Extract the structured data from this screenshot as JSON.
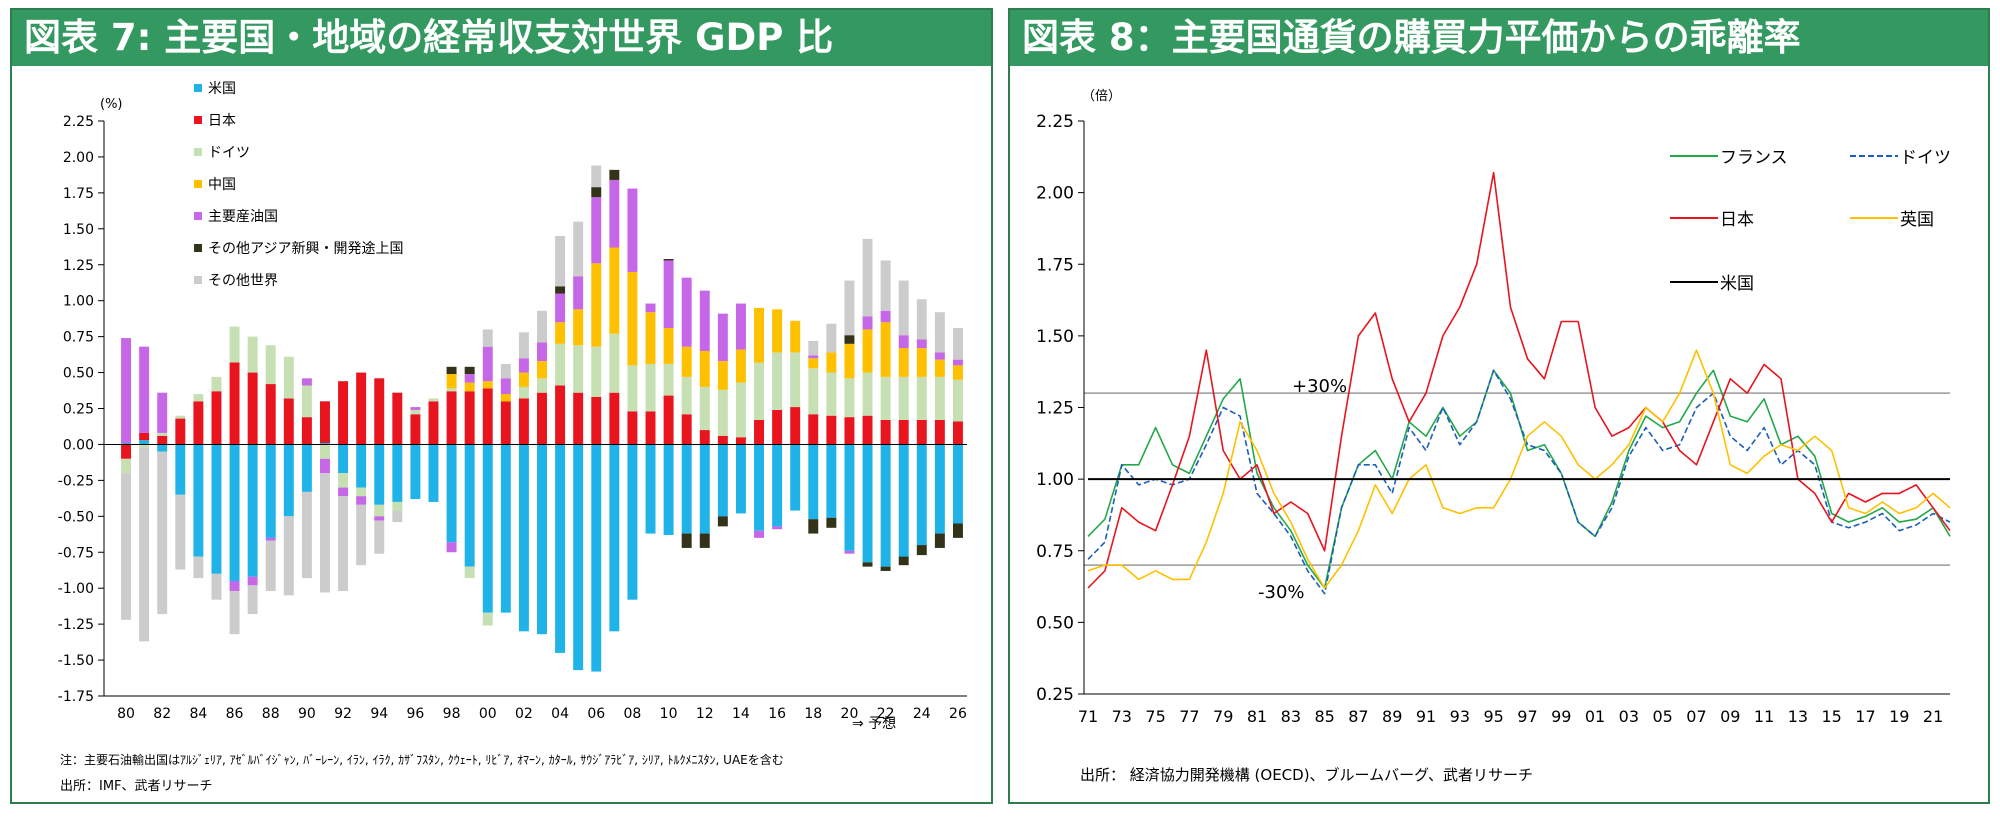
{
  "chart7": {
    "title": "図表 7: 主要国・地域の経常収支対世界 GDP 比",
    "unit": "(%)",
    "forecast_label": "⇒ 予想",
    "note": "注：主要石油輸出国はｱﾙｼﾞｪﾘｱ, ｱｾﾞﾙﾊﾞｲｼﾞｬﾝ, ﾊﾞｰﾚｰﾝ, ｲﾗﾝ, ｲﾗｸ, ｶｻﾞﾌｽﾀﾝ, ｸｳｪｰﾄ, ﾘﾋﾞｱ, ｵﾏｰﾝ, ｶﾀｰﾙ, ｻｳｼﾞｱﾗﾋﾞｱ, ｼﾘｱ, ﾄﾙｸﾒﾆｽﾀﾝ, UAEを含む",
    "source": "出所：IMF、武者リサーチ"
  },
  "chart8": {
    "title": "図表 8：主要国通貨の購買力平価からの乖離率",
    "unit": "（倍）",
    "plus_label": "+30%",
    "minus_label": "-30%",
    "source": "出所： 経済協力開発機構 (OECD)、ブルームバーグ、武者リサーチ"
  },
  "chart_data": [
    {
      "type": "bar",
      "stacked": true,
      "title": "図表 7: 主要国・地域の経常収支対世界 GDP 比",
      "ylabel": "(%)",
      "ylim": [
        -1.75,
        2.25
      ],
      "yticks": [
        "2.25",
        "2.00",
        "1.75",
        "1.50",
        "1.25",
        "1.00",
        "0.75",
        "0.50",
        "0.25",
        "0.00",
        "-0.25",
        "-0.50",
        "-0.75",
        "-1.00",
        "-1.25",
        "-1.50",
        "-1.75"
      ],
      "xtick_labels": [
        "80",
        "82",
        "84",
        "86",
        "88",
        "90",
        "92",
        "94",
        "96",
        "98",
        "00",
        "02",
        "04",
        "06",
        "08",
        "10",
        "12",
        "14",
        "16",
        "18",
        "20",
        "22",
        "24",
        "26"
      ],
      "legend_position": "top-left",
      "categories": [
        "1980",
        "1981",
        "1982",
        "1983",
        "1984",
        "1985",
        "1986",
        "1987",
        "1988",
        "1989",
        "1990",
        "1991",
        "1992",
        "1993",
        "1994",
        "1995",
        "1996",
        "1997",
        "1998",
        "1999",
        "2000",
        "2001",
        "2002",
        "2003",
        "2004",
        "2005",
        "2006",
        "2007",
        "2008",
        "2009",
        "2010",
        "2011",
        "2012",
        "2013",
        "2014",
        "2015",
        "2016",
        "2017",
        "2018",
        "2019",
        "2020",
        "2021",
        "2022",
        "2023",
        "2024",
        "2025",
        "2026"
      ],
      "series": [
        {
          "name": "米国",
          "color": "#1fb3e8",
          "values": [
            0.01,
            0.03,
            -0.05,
            -0.35,
            -0.78,
            -0.9,
            -0.95,
            -0.92,
            -0.65,
            -0.5,
            -0.33,
            0.01,
            -0.2,
            -0.3,
            -0.42,
            -0.4,
            -0.38,
            -0.4,
            -0.68,
            -0.85,
            -1.17,
            -1.17,
            -1.3,
            -1.32,
            -1.45,
            -1.57,
            -1.58,
            -1.3,
            -1.08,
            -0.62,
            -0.63,
            -0.62,
            -0.62,
            -0.5,
            -0.48,
            -0.6,
            -0.57,
            -0.46,
            -0.52,
            -0.51,
            -0.74,
            -0.82,
            -0.85,
            -0.78,
            -0.7,
            -0.62,
            -0.55
          ]
        },
        {
          "name": "日本",
          "color": "#e8141e",
          "values": [
            -0.1,
            0.05,
            0.06,
            0.18,
            0.3,
            0.37,
            0.57,
            0.5,
            0.42,
            0.32,
            0.19,
            0.29,
            0.44,
            0.5,
            0.46,
            0.36,
            0.21,
            0.3,
            0.37,
            0.37,
            0.39,
            0.3,
            0.32,
            0.36,
            0.41,
            0.36,
            0.33,
            0.36,
            0.23,
            0.23,
            0.34,
            0.21,
            0.1,
            0.06,
            0.05,
            0.17,
            0.24,
            0.26,
            0.21,
            0.2,
            0.19,
            0.2,
            0.17,
            0.17,
            0.17,
            0.17,
            0.16
          ]
        },
        {
          "name": "ドイツ",
          "color": "#c6e0b4",
          "values": [
            -0.1,
            -0.02,
            0.02,
            0.02,
            0.05,
            0.1,
            0.25,
            0.25,
            0.27,
            0.29,
            0.22,
            -0.1,
            -0.1,
            -0.06,
            -0.08,
            -0.06,
            0.03,
            0.02,
            0.02,
            -0.08,
            -0.09,
            0.0,
            0.08,
            0.1,
            0.29,
            0.33,
            0.35,
            0.41,
            0.32,
            0.33,
            0.22,
            0.26,
            0.3,
            0.32,
            0.38,
            0.4,
            0.4,
            0.38,
            0.32,
            0.3,
            0.27,
            0.3,
            0.3,
            0.3,
            0.3,
            0.3,
            0.29
          ]
        },
        {
          "name": "中国",
          "color": "#ffc000",
          "values": [
            0,
            0,
            0,
            0,
            0,
            0,
            0,
            0,
            0,
            0,
            0,
            0,
            0,
            0,
            0,
            0,
            0,
            0,
            0.1,
            0.06,
            0.05,
            0.05,
            0.1,
            0.12,
            0.15,
            0.25,
            0.58,
            0.6,
            0.65,
            0.36,
            0.25,
            0.21,
            0.25,
            0.2,
            0.23,
            0.38,
            0.3,
            0.22,
            0.07,
            0.14,
            0.24,
            0.3,
            0.38,
            0.2,
            0.2,
            0.12,
            0.1
          ]
        },
        {
          "name": "主要産油国",
          "color": "#c667e8",
          "values": [
            0.73,
            0.6,
            0.28,
            0.0,
            0.0,
            0.0,
            -0.07,
            -0.06,
            -0.02,
            0.0,
            0.05,
            -0.1,
            -0.06,
            -0.06,
            -0.03,
            0.0,
            0.02,
            0.0,
            -0.07,
            0.06,
            0.24,
            0.11,
            0.1,
            0.13,
            0.2,
            0.23,
            0.46,
            0.47,
            0.58,
            0.06,
            0.47,
            0.48,
            0.42,
            0.33,
            0.32,
            -0.05,
            -0.02,
            0.0,
            0.02,
            0.0,
            -0.02,
            0.09,
            0.08,
            0.09,
            0.06,
            0.05,
            0.04
          ]
        },
        {
          "name": "その他アジア新興・開発途上国",
          "color": "#333319",
          "values": [
            0.0,
            0.0,
            0.0,
            0.0,
            0.0,
            0.0,
            0.0,
            0.0,
            0.0,
            0.0,
            0.0,
            0.0,
            0.0,
            0.0,
            0.0,
            0.0,
            0.0,
            0.0,
            0.05,
            0.05,
            0.0,
            0.0,
            0.0,
            0.0,
            0.05,
            0.0,
            0.07,
            0.07,
            0.0,
            0.0,
            0.01,
            -0.1,
            -0.1,
            -0.07,
            0.0,
            0.0,
            0.0,
            0.0,
            -0.1,
            -0.07,
            0.06,
            -0.03,
            -0.03,
            -0.06,
            -0.07,
            -0.1,
            -0.1
          ]
        },
        {
          "name": "その他世界",
          "color": "#cccccc",
          "values": [
            -1.02,
            -1.35,
            -1.13,
            -0.52,
            -0.15,
            -0.18,
            -0.3,
            -0.2,
            -0.35,
            -0.55,
            -0.6,
            -0.83,
            -0.66,
            -0.42,
            -0.23,
            -0.08,
            0.0,
            0.0,
            0.0,
            0.0,
            0.12,
            0.1,
            0.18,
            0.22,
            0.35,
            0.38,
            0.15,
            0.0,
            0.0,
            0.0,
            0.0,
            0.0,
            0.0,
            0.0,
            0.0,
            0.0,
            0.0,
            0.0,
            0.1,
            0.2,
            0.38,
            0.54,
            0.35,
            0.38,
            0.28,
            0.28,
            0.22
          ]
        }
      ]
    },
    {
      "type": "line",
      "title": "図表 8：主要国通貨の購買力平価からの乖離率",
      "ylabel": "（倍）",
      "ylim": [
        0.25,
        2.25
      ],
      "yticks": [
        "2.25",
        "2.00",
        "1.75",
        "1.50",
        "1.25",
        "1.00",
        "0.75",
        "0.50",
        "0.25"
      ],
      "xlim": [
        1971,
        2022
      ],
      "xtick_labels": [
        "71",
        "73",
        "75",
        "77",
        "79",
        "81",
        "83",
        "85",
        "87",
        "89",
        "91",
        "93",
        "95",
        "97",
        "99",
        "01",
        "03",
        "05",
        "07",
        "09",
        "11",
        "13",
        "15",
        "17",
        "19",
        "21"
      ],
      "reference_lines": [
        {
          "value": 1.3,
          "label": "+30%"
        },
        {
          "value": 0.7,
          "label": "-30%"
        }
      ],
      "legend_position": "top-right",
      "series": [
        {
          "name": "フランス",
          "color": "#22a84a",
          "x": [
            1971,
            1972,
            1973,
            1974,
            1975,
            1976,
            1977,
            1978,
            1979,
            1980,
            1981,
            1982,
            1983,
            1984,
            1985,
            1986,
            1987,
            1988,
            1989,
            1990,
            1991,
            1992,
            1993,
            1994,
            1995,
            1996,
            1997,
            1998,
            1999,
            2000,
            2001,
            2002,
            2003,
            2004,
            2005,
            2006,
            2007,
            2008,
            2009,
            2010,
            2011,
            2012,
            2013,
            2014,
            2015,
            2016,
            2017,
            2018,
            2019,
            2020,
            2021,
            2022
          ],
          "values": [
            0.8,
            0.86,
            1.05,
            1.05,
            1.18,
            1.05,
            1.02,
            1.15,
            1.28,
            1.35,
            1.02,
            0.9,
            0.82,
            0.7,
            0.62,
            0.9,
            1.05,
            1.1,
            1.0,
            1.2,
            1.15,
            1.25,
            1.15,
            1.2,
            1.38,
            1.3,
            1.1,
            1.12,
            1.02,
            0.85,
            0.8,
            0.92,
            1.1,
            1.22,
            1.18,
            1.2,
            1.3,
            1.38,
            1.22,
            1.2,
            1.28,
            1.12,
            1.15,
            1.08,
            0.88,
            0.85,
            0.87,
            0.9,
            0.85,
            0.86,
            0.9,
            0.8
          ]
        },
        {
          "name": "ドイツ",
          "color": "#1b5fb8",
          "dashed": true,
          "x": [
            1971,
            1972,
            1973,
            1974,
            1975,
            1976,
            1977,
            1978,
            1979,
            1980,
            1981,
            1982,
            1983,
            1984,
            1985,
            1986,
            1987,
            1988,
            1989,
            1990,
            1991,
            1992,
            1993,
            1994,
            1995,
            1996,
            1997,
            1998,
            1999,
            2000,
            2001,
            2002,
            2003,
            2004,
            2005,
            2006,
            2007,
            2008,
            2009,
            2010,
            2011,
            2012,
            2013,
            2014,
            2015,
            2016,
            2017,
            2018,
            2019,
            2020,
            2021,
            2022
          ],
          "values": [
            0.72,
            0.78,
            1.05,
            0.98,
            1.0,
            0.98,
            1.0,
            1.12,
            1.25,
            1.22,
            0.95,
            0.88,
            0.8,
            0.68,
            0.6,
            0.9,
            1.05,
            1.05,
            0.95,
            1.18,
            1.1,
            1.25,
            1.12,
            1.2,
            1.38,
            1.28,
            1.12,
            1.1,
            1.02,
            0.85,
            0.8,
            0.9,
            1.08,
            1.18,
            1.1,
            1.12,
            1.25,
            1.3,
            1.15,
            1.1,
            1.18,
            1.05,
            1.1,
            1.05,
            0.85,
            0.83,
            0.85,
            0.88,
            0.82,
            0.84,
            0.88,
            0.85
          ]
        },
        {
          "name": "日本",
          "color": "#e8141e",
          "x": [
            1971,
            1972,
            1973,
            1974,
            1975,
            1976,
            1977,
            1978,
            1979,
            1980,
            1981,
            1982,
            1983,
            1984,
            1985,
            1986,
            1987,
            1988,
            1989,
            1990,
            1991,
            1992,
            1993,
            1994,
            1995,
            1996,
            1997,
            1998,
            1999,
            2000,
            2001,
            2002,
            2003,
            2004,
            2005,
            2006,
            2007,
            2008,
            2009,
            2010,
            2011,
            2012,
            2013,
            2014,
            2015,
            2016,
            2017,
            2018,
            2019,
            2020,
            2021,
            2022
          ],
          "values": [
            0.62,
            0.68,
            0.9,
            0.85,
            0.82,
            0.98,
            1.15,
            1.45,
            1.1,
            1.0,
            1.05,
            0.88,
            0.92,
            0.88,
            0.75,
            1.15,
            1.5,
            1.58,
            1.35,
            1.2,
            1.3,
            1.5,
            1.6,
            1.75,
            2.07,
            1.6,
            1.42,
            1.35,
            1.55,
            1.55,
            1.25,
            1.15,
            1.18,
            1.25,
            1.2,
            1.1,
            1.05,
            1.2,
            1.35,
            1.3,
            1.4,
            1.35,
            1.0,
            0.95,
            0.85,
            0.95,
            0.92,
            0.95,
            0.95,
            0.98,
            0.9,
            0.82
          ]
        },
        {
          "name": "英国",
          "color": "#ffc000",
          "x": [
            1971,
            1972,
            1973,
            1974,
            1975,
            1976,
            1977,
            1978,
            1979,
            1980,
            1981,
            1982,
            1983,
            1984,
            1985,
            1986,
            1987,
            1988,
            1989,
            1990,
            1991,
            1992,
            1993,
            1994,
            1995,
            1996,
            1997,
            1998,
            1999,
            2000,
            2001,
            2002,
            2003,
            2004,
            2005,
            2006,
            2007,
            2008,
            2009,
            2010,
            2011,
            2012,
            2013,
            2014,
            2015,
            2016,
            2017,
            2018,
            2019,
            2020,
            2021,
            2022
          ],
          "values": [
            0.68,
            0.7,
            0.7,
            0.65,
            0.68,
            0.65,
            0.65,
            0.78,
            0.95,
            1.2,
            1.1,
            0.95,
            0.85,
            0.72,
            0.62,
            0.7,
            0.82,
            0.98,
            0.88,
            1.0,
            1.05,
            0.9,
            0.88,
            0.9,
            0.9,
            1.0,
            1.15,
            1.2,
            1.15,
            1.05,
            1.0,
            1.05,
            1.12,
            1.25,
            1.2,
            1.3,
            1.45,
            1.3,
            1.05,
            1.02,
            1.08,
            1.12,
            1.1,
            1.15,
            1.1,
            0.9,
            0.88,
            0.92,
            0.88,
            0.9,
            0.95,
            0.9
          ]
        },
        {
          "name": "米国",
          "color": "#000000",
          "x": [
            1971,
            2022
          ],
          "values": [
            1.0,
            1.0
          ]
        }
      ]
    }
  ]
}
